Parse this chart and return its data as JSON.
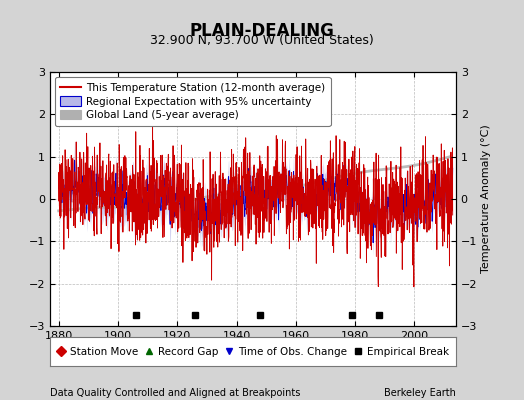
{
  "title": "PLAIN-DEALING",
  "subtitle": "32.900 N, 93.700 W (United States)",
  "ylabel": "Temperature Anomaly (°C)",
  "footer_left": "Data Quality Controlled and Aligned at Breakpoints",
  "footer_right": "Berkeley Earth",
  "ylim": [
    -3,
    3
  ],
  "xlim": [
    1877,
    2014
  ],
  "yticks": [
    -3,
    -2,
    -1,
    0,
    1,
    2,
    3
  ],
  "xticks": [
    1880,
    1900,
    1920,
    1940,
    1960,
    1980,
    2000
  ],
  "bg_color": "#d4d4d4",
  "plot_bg": "#ffffff",
  "grid_color": "#aaaaaa",
  "red_line": "#cc0000",
  "blue_line": "#0000cc",
  "blue_fill": "#b8b8e8",
  "gray_line": "#b0b0b0",
  "empirical_breaks": [
    1906,
    1926,
    1948,
    1979,
    1988
  ],
  "title_fs": 12,
  "subtitle_fs": 9,
  "legend_fs": 7.5,
  "tick_fs": 8,
  "footer_fs": 7
}
